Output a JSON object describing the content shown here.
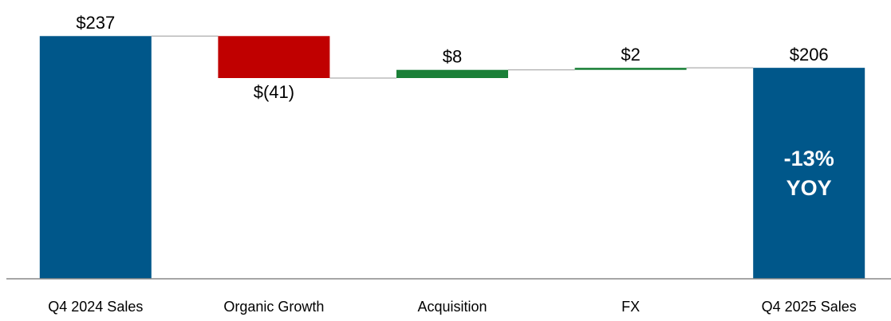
{
  "chart_data": {
    "type": "waterfall",
    "categories": [
      "Q4 2024 Sales",
      "Organic Growth",
      "Acquisition",
      "FX",
      "Q4 2025 Sales"
    ],
    "measures": [
      "total",
      "relative",
      "relative",
      "relative",
      "total"
    ],
    "values": [
      237,
      -41,
      8,
      2,
      206
    ],
    "value_labels": [
      "$237",
      "$(41)",
      "$8",
      "$2",
      "$206"
    ],
    "colors": {
      "total": "#00578a",
      "increase": "#1a7f37",
      "decrease": "#c00000"
    },
    "ylim": [
      0,
      245
    ],
    "annotation": [
      "-13%",
      "YOY"
    ]
  }
}
